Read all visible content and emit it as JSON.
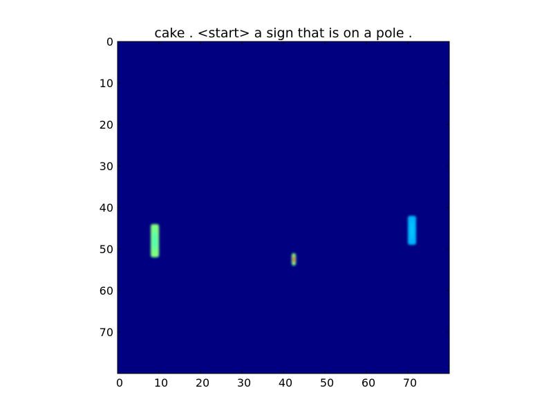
{
  "chart_data": {
    "type": "heatmap",
    "title": "cake . <start> a sign that is on a pole .",
    "xlabel": "",
    "ylabel": "",
    "xlim": [
      0,
      80
    ],
    "ylim": [
      80,
      0
    ],
    "x_ticks": [
      "0",
      "10",
      "20",
      "30",
      "40",
      "50",
      "60",
      "70"
    ],
    "y_ticks": [
      "0",
      "10",
      "20",
      "30",
      "40",
      "50",
      "60",
      "70"
    ],
    "colormap": "jet",
    "background_value": 0.0,
    "value_range": [
      0,
      1
    ],
    "grid": false,
    "legend": "none",
    "hotspots": [
      {
        "x": [
          8,
          10
        ],
        "y": [
          44,
          52
        ],
        "value": 0.5,
        "core_value": 0.45
      },
      {
        "x": [
          70,
          72
        ],
        "y": [
          42,
          49
        ],
        "value": 0.3,
        "core_value": 0.32
      },
      {
        "x": [
          42,
          43
        ],
        "y": [
          51,
          54
        ],
        "value": 0.5,
        "core_value": 0.9
      }
    ]
  },
  "colors": {
    "background_colormap_low": "#000080",
    "frame": "#000000"
  }
}
